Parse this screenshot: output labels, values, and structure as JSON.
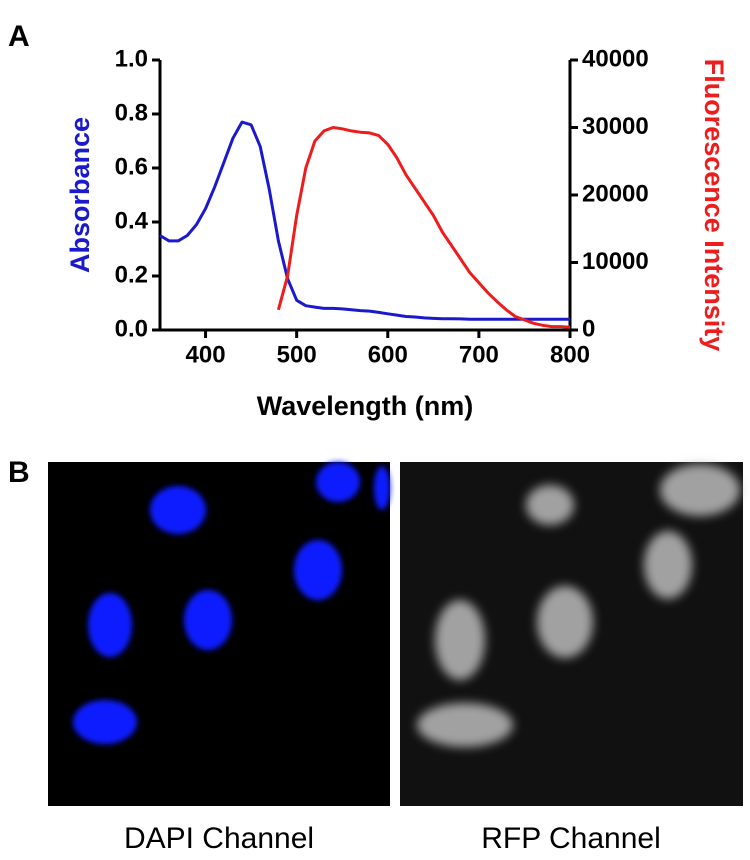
{
  "panel_labels": [
    "A",
    "B"
  ],
  "chart_data": {
    "type": "line",
    "x_label": "Wavelength (nm)",
    "y_label": "Absorbance",
    "y2_label": "Fluorescence Intensity",
    "x": [
      350,
      360,
      370,
      380,
      390,
      400,
      410,
      420,
      430,
      440,
      450,
      460,
      470,
      480,
      490,
      500,
      510,
      520,
      530,
      540,
      550,
      560,
      570,
      580,
      590,
      600,
      610,
      620,
      630,
      640,
      650,
      660,
      670,
      680,
      690,
      700,
      710,
      720,
      730,
      740,
      750,
      760,
      770,
      780,
      790,
      800
    ],
    "series": [
      {
        "name": "Absorbance",
        "color": "#1a1acc",
        "axis": "y",
        "values": [
          0.35,
          0.33,
          0.33,
          0.35,
          0.39,
          0.45,
          0.53,
          0.62,
          0.71,
          0.77,
          0.76,
          0.68,
          0.52,
          0.33,
          0.19,
          0.11,
          0.09,
          0.085,
          0.08,
          0.08,
          0.078,
          0.075,
          0.072,
          0.07,
          0.065,
          0.06,
          0.055,
          0.05,
          0.048,
          0.045,
          0.043,
          0.042,
          0.042,
          0.041,
          0.04,
          0.04,
          0.04,
          0.04,
          0.04,
          0.04,
          0.04,
          0.04,
          0.04,
          0.04,
          0.04,
          0.04
        ]
      },
      {
        "name": "Fluorescence Intensity",
        "color": "#ee1c1c",
        "axis": "y2",
        "values": [
          null,
          null,
          null,
          null,
          null,
          null,
          null,
          null,
          null,
          null,
          null,
          null,
          null,
          3000,
          8000,
          17000,
          24000,
          28000,
          29500,
          30000,
          29800,
          29500,
          29300,
          29200,
          28800,
          27500,
          25500,
          23000,
          21000,
          19000,
          17000,
          14500,
          12500,
          10500,
          8500,
          7000,
          5500,
          4200,
          3000,
          2000,
          1500,
          1000,
          700,
          500,
          500,
          400
        ]
      }
    ],
    "xlim": [
      350,
      800
    ],
    "xticks": [
      400,
      500,
      600,
      700,
      800
    ],
    "ylim": [
      0,
      1
    ],
    "yticks": [
      {
        "value": 0,
        "label": "0.0"
      },
      0.2,
      0.4,
      0.6,
      0.8,
      {
        "value": 1,
        "label": "1.0"
      }
    ],
    "y2lim": [
      0,
      40000
    ],
    "y2ticks": [
      0,
      10000,
      20000,
      30000,
      40000
    ],
    "grid": false
  },
  "images": [
    {
      "caption": "DAPI Channel"
    },
    {
      "caption": "RFP Channel"
    }
  ]
}
